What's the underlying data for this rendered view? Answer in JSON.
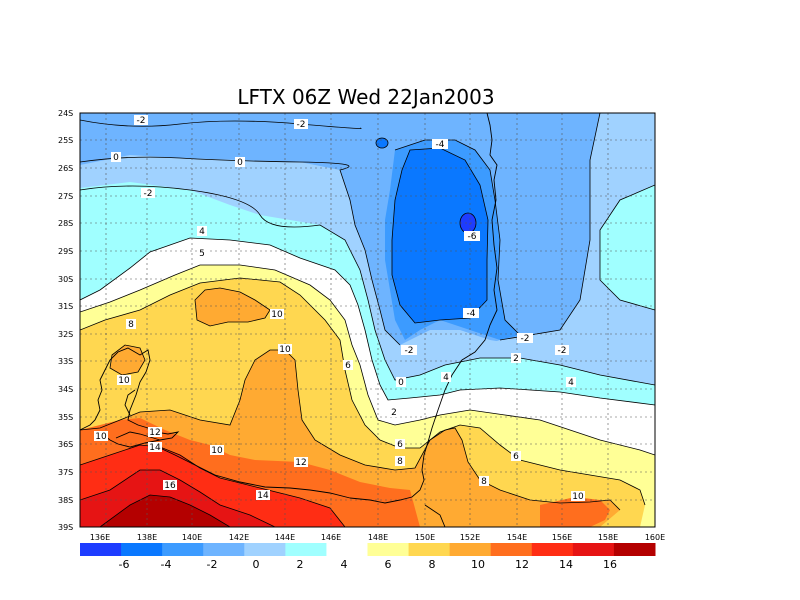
{
  "title": "LFTX 06Z Wed 22Jan2003",
  "x_ticks": [
    "136E",
    "138E",
    "140E",
    "142E",
    "144E",
    "146E",
    "148E",
    "150E",
    "152E",
    "154E",
    "156E",
    "158E",
    "160E"
  ],
  "y_ticks": [
    "24S",
    "25S",
    "26S",
    "27S",
    "28S",
    "29S",
    "30S",
    "31S",
    "32S",
    "33S",
    "34S",
    "35S",
    "36S",
    "37S",
    "38S",
    "39S"
  ],
  "colorbar": {
    "colors": [
      "#1e3cff",
      "#0a78ff",
      "#3c9bff",
      "#6eb4ff",
      "#a0d2ff",
      "#a0ffff",
      "#ffffff",
      "#ffff96",
      "#ffd750",
      "#ffaa32",
      "#ff6e1e",
      "#ff2d14",
      "#e61414",
      "#b40000"
    ],
    "labels": [
      "-6",
      "-4",
      "-2",
      "0",
      "2",
      "4",
      "6",
      "8",
      "10",
      "12",
      "14",
      "16"
    ]
  },
  "contour_labels": [
    "-2",
    "-2",
    "0",
    "0",
    "-2",
    "-4",
    "-6",
    "-4",
    "-2",
    "-2",
    "-2",
    "0",
    "2",
    "4",
    "4",
    "5",
    "6",
    "8",
    "10",
    "10",
    "10",
    "10",
    "8",
    "6",
    "4",
    "2",
    "0",
    "6",
    "8",
    "6",
    "8",
    "10",
    "12",
    "14",
    "16",
    "14",
    "12",
    "10"
  ]
}
